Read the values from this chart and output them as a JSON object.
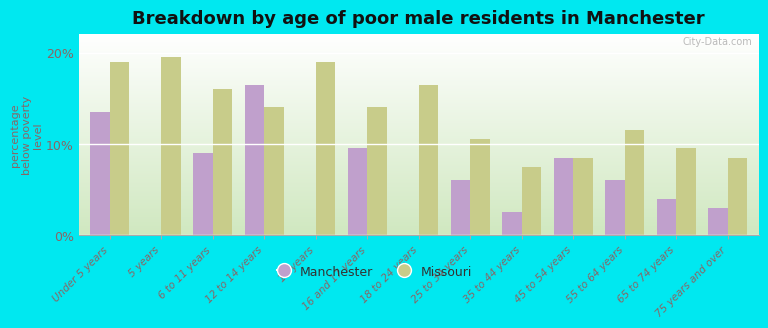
{
  "title": "Breakdown by age of poor male residents in Manchester",
  "categories": [
    "Under 5 years",
    "5 years",
    "6 to 11 years",
    "12 to 14 years",
    "15 years",
    "16 and 17 years",
    "18 to 24 years",
    "25 to 34 years",
    "35 to 44 years",
    "45 to 54 years",
    "55 to 64 years",
    "65 to 74 years",
    "75 years and over"
  ],
  "manchester_values": [
    13.5,
    0,
    9.0,
    16.5,
    0,
    9.5,
    0,
    6.0,
    2.5,
    8.5,
    6.0,
    4.0,
    3.0
  ],
  "missouri_values": [
    19.0,
    19.5,
    16.0,
    14.0,
    19.0,
    14.0,
    16.5,
    10.5,
    7.5,
    8.5,
    11.5,
    9.5,
    8.5
  ],
  "manchester_color": "#c0a0cc",
  "missouri_color": "#c8cc8a",
  "background_top": "#ffffff",
  "background_bottom": "#d0e8c0",
  "outer_background": "#00e8f0",
  "ylabel": "percentage\nbelow poverty\nlevel",
  "ylim": [
    0,
    22
  ],
  "yticks": [
    0,
    10,
    20
  ],
  "ytick_labels": [
    "0%",
    "10%",
    "20%"
  ],
  "title_fontsize": 13,
  "legend_labels": [
    "Manchester",
    "Missouri"
  ],
  "watermark": "City-Data.com",
  "tick_label_color": "#886666",
  "ylabel_color": "#886666"
}
